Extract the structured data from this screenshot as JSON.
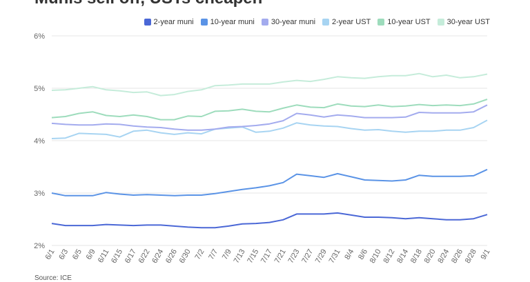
{
  "chart_data": {
    "type": "line",
    "title": "Munis sell off, USTs cheapen",
    "ylim": [
      2,
      6
    ],
    "y_ticks": [
      "2%",
      "3%",
      "4%",
      "5%",
      "6%"
    ],
    "y_tick_values": [
      2,
      3,
      4,
      5,
      6
    ],
    "x_tick_labels": [
      "6/1",
      "6/3",
      "6/5",
      "6/9",
      "6/11",
      "6/15",
      "6/17",
      "6/22",
      "6/24",
      "6/26",
      "6/30",
      "7/2",
      "7/7",
      "7/9",
      "7/13",
      "7/15",
      "7/17",
      "7/21",
      "7/23",
      "7/27",
      "7/29",
      "7/31",
      "8/4",
      "8/6",
      "8/10",
      "8/12",
      "8/14",
      "8/18",
      "8/20",
      "8/24",
      "8/26",
      "8/28",
      "9/1"
    ],
    "grid": true,
    "legend_position": "top-right",
    "series": [
      {
        "name": "2-year muni",
        "color": "#4a67d6",
        "values": [
          2.42,
          2.38,
          2.38,
          2.38,
          2.4,
          2.39,
          2.38,
          2.39,
          2.39,
          2.37,
          2.35,
          2.34,
          2.34,
          2.37,
          2.41,
          2.42,
          2.44,
          2.49,
          2.6,
          2.6,
          2.6,
          2.62,
          2.58,
          2.54,
          2.54,
          2.53,
          2.51,
          2.53,
          2.51,
          2.49,
          2.49,
          2.51,
          2.59
        ]
      },
      {
        "name": "10-year muni",
        "color": "#5a93e6",
        "values": [
          3.0,
          2.95,
          2.95,
          2.95,
          3.01,
          2.98,
          2.96,
          2.97,
          2.96,
          2.95,
          2.96,
          2.96,
          2.99,
          3.03,
          3.07,
          3.1,
          3.14,
          3.2,
          3.36,
          3.33,
          3.3,
          3.37,
          3.31,
          3.25,
          3.24,
          3.23,
          3.25,
          3.34,
          3.32,
          3.32,
          3.32,
          3.33,
          3.45
        ]
      },
      {
        "name": "30-year muni",
        "color": "#a3abee",
        "values": [
          4.33,
          4.31,
          4.3,
          4.3,
          4.32,
          4.31,
          4.28,
          4.26,
          4.25,
          4.22,
          4.2,
          4.2,
          4.22,
          4.26,
          4.27,
          4.29,
          4.32,
          4.38,
          4.52,
          4.49,
          4.45,
          4.49,
          4.47,
          4.44,
          4.44,
          4.44,
          4.45,
          4.54,
          4.53,
          4.53,
          4.53,
          4.55,
          4.68
        ]
      },
      {
        "name": "2-year UST",
        "color": "#a7d4f2",
        "values": [
          4.04,
          4.05,
          4.14,
          4.13,
          4.12,
          4.07,
          4.18,
          4.2,
          4.15,
          4.12,
          4.15,
          4.13,
          4.22,
          4.24,
          4.26,
          4.16,
          4.18,
          4.24,
          4.34,
          4.3,
          4.28,
          4.27,
          4.23,
          4.2,
          4.21,
          4.18,
          4.16,
          4.18,
          4.18,
          4.2,
          4.2,
          4.25,
          4.39
        ]
      },
      {
        "name": "10-year UST",
        "color": "#9ddcbc",
        "values": [
          4.44,
          4.46,
          4.52,
          4.55,
          4.48,
          4.46,
          4.49,
          4.46,
          4.4,
          4.4,
          4.47,
          4.46,
          4.56,
          4.57,
          4.6,
          4.56,
          4.55,
          4.62,
          4.68,
          4.64,
          4.63,
          4.7,
          4.66,
          4.65,
          4.68,
          4.65,
          4.66,
          4.69,
          4.67,
          4.68,
          4.67,
          4.7,
          4.79
        ]
      },
      {
        "name": "30-year UST",
        "color": "#c5ecda",
        "values": [
          4.96,
          4.97,
          5.0,
          5.03,
          4.97,
          4.95,
          4.92,
          4.93,
          4.86,
          4.88,
          4.94,
          4.97,
          5.05,
          5.06,
          5.08,
          5.08,
          5.08,
          5.12,
          5.15,
          5.13,
          5.17,
          5.22,
          5.2,
          5.19,
          5.22,
          5.24,
          5.24,
          5.28,
          5.22,
          5.25,
          5.2,
          5.22,
          5.27
        ]
      }
    ]
  },
  "footer": {
    "source_label": "Source: ICE"
  }
}
